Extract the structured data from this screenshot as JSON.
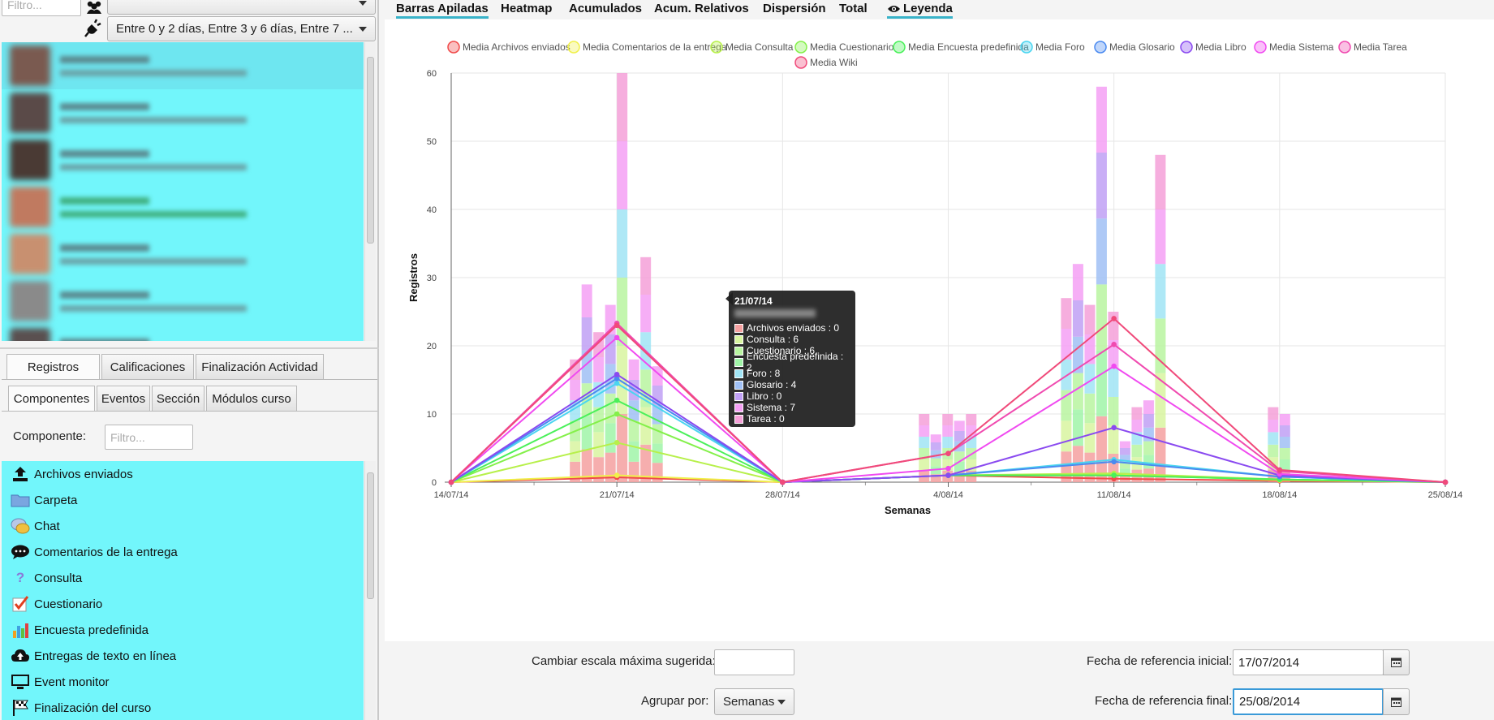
{
  "left": {
    "filter_placeholder": "Filtro...",
    "time_filter_value": "Entre 0 y 2 días, Entre 3 y 6 días, Entre 7 ...",
    "tabs": [
      {
        "label": "Registros",
        "selected": true
      },
      {
        "label": "Calificaciones",
        "selected": false
      },
      {
        "label": "Finalización Actividad",
        "selected": false
      }
    ],
    "subtabs": [
      {
        "label": "Componentes",
        "selected": true
      },
      {
        "label": "Eventos",
        "selected": false
      },
      {
        "label": "Sección",
        "selected": false
      },
      {
        "label": "Módulos curso",
        "selected": false
      }
    ],
    "component_label": "Componente:",
    "component_placeholder": "Filtro...",
    "components": [
      {
        "label": "Archivos enviados",
        "icon": "upload-icon"
      },
      {
        "label": "Carpeta",
        "icon": "folder-icon"
      },
      {
        "label": "Chat",
        "icon": "chat-icon"
      },
      {
        "label": "Comentarios de la entrega",
        "icon": "comment-icon"
      },
      {
        "label": "Consulta",
        "icon": "question-icon"
      },
      {
        "label": "Cuestionario",
        "icon": "quiz-icon"
      },
      {
        "label": "Encuesta predefinida",
        "icon": "bar-chart-icon"
      },
      {
        "label": "Entregas de texto en línea",
        "icon": "cloud-upload-icon"
      },
      {
        "label": "Event monitor",
        "icon": "monitor-icon"
      },
      {
        "label": "Finalización del curso",
        "icon": "flag-icon"
      }
    ]
  },
  "tabs": [
    {
      "label": "Barras Apiladas",
      "selected": true
    },
    {
      "label": "Heatmap"
    },
    {
      "label": "Acumulados"
    },
    {
      "label": "Acum. Relativos"
    },
    {
      "label": "Dispersión"
    },
    {
      "label": "Total"
    },
    {
      "label": "Leyenda",
      "icon": "eye-icon",
      "selected": true
    }
  ],
  "chart_data": {
    "type": "bar",
    "subtype": "stacked bar with mean lines",
    "xlabel": "Semanas",
    "ylabel": "Registros",
    "ylim": [
      0,
      60
    ],
    "yticks": [
      0,
      10,
      20,
      30,
      40,
      50,
      60
    ],
    "x_categories": [
      "14/07/14",
      "21/07/14",
      "28/07/14",
      "4/08/14",
      "11/08/14",
      "18/08/14",
      "25/08/14"
    ],
    "legend_position": "top",
    "grid": true,
    "legend": [
      {
        "name": "Media Archivos enviados",
        "color": "#f04a4a"
      },
      {
        "name": "Media Comentarios de la entrega",
        "color": "#f0f04a"
      },
      {
        "name": "Media Consulta",
        "color": "#b7f04a"
      },
      {
        "name": "Media Cuestionario",
        "color": "#84f04a"
      },
      {
        "name": "Media Encuesta predefinida",
        "color": "#4af05a"
      },
      {
        "name": "Media Foro",
        "color": "#4ad5f0"
      },
      {
        "name": "Media Glosario",
        "color": "#4a8af0"
      },
      {
        "name": "Media Libro",
        "color": "#8a4af0"
      },
      {
        "name": "Media Sistema",
        "color": "#f04af0"
      },
      {
        "name": "Media Tarea",
        "color": "#f04ab0"
      },
      {
        "name": "Media Wiki",
        "color": "#f04a7a"
      }
    ],
    "mean_series": [
      {
        "name": "Media Archivos enviados",
        "values": [
          0,
          0.7,
          0,
          1.0,
          0.5,
          0.2,
          0
        ]
      },
      {
        "name": "Media Comentarios de la entrega",
        "values": [
          0,
          1.0,
          0,
          1.0,
          1.1,
          0.3,
          0
        ]
      },
      {
        "name": "Media Consulta",
        "values": [
          0,
          5.8,
          0,
          1.0,
          1.3,
          0.4,
          0
        ]
      },
      {
        "name": "Media Cuestionario",
        "values": [
          0,
          10.0,
          0,
          1.0,
          1.0,
          0.4,
          0
        ]
      },
      {
        "name": "Media Encuesta predefinida",
        "values": [
          0,
          12.0,
          0,
          1.0,
          1.0,
          0.4,
          0
        ]
      },
      {
        "name": "Media Foro",
        "values": [
          0,
          14.5,
          0,
          1.0,
          3.3,
          0.8,
          0
        ]
      },
      {
        "name": "Media Glosario",
        "values": [
          0,
          15.2,
          0,
          1.0,
          3.0,
          0.8,
          0
        ]
      },
      {
        "name": "Media Libro",
        "values": [
          0,
          15.8,
          0,
          1.0,
          8.0,
          1.0,
          0
        ]
      },
      {
        "name": "Media Sistema",
        "values": [
          0,
          21.2,
          0,
          2.0,
          17.0,
          1.2,
          0
        ]
      },
      {
        "name": "Media Tarea",
        "values": [
          0,
          23.3,
          0,
          4.2,
          20.2,
          1.6,
          0
        ]
      },
      {
        "name": "Media Wiki",
        "values": [
          0,
          23.0,
          0,
          4.2,
          24.0,
          1.8,
          0
        ]
      }
    ],
    "bar_totals": {
      "21/07/14": [
        18,
        29,
        22,
        26,
        60,
        18,
        33,
        17
      ],
      "4/08/14": [
        10,
        7,
        10,
        9,
        10
      ],
      "11/08/14": [
        27,
        32,
        26,
        58,
        25,
        6,
        11,
        12,
        48
      ],
      "18/08/14": [
        11,
        10
      ]
    },
    "tooltip": {
      "title": "21/07/14",
      "rows": [
        {
          "label": "Archivos enviados : 0",
          "color": "#f5a0a0"
        },
        {
          "label": "Consulta : 6",
          "color": "#d8f5a0"
        },
        {
          "label": "Cuestionario : 6",
          "color": "#b8f5a0"
        },
        {
          "label": "Encuesta predefinida : 2",
          "color": "#a0f5a8"
        },
        {
          "label": "Foro : 8",
          "color": "#a0e4f5"
        },
        {
          "label": "Glosario : 4",
          "color": "#a0c0f5"
        },
        {
          "label": "Libro : 0",
          "color": "#c0a0f5"
        },
        {
          "label": "Sistema : 7",
          "color": "#f5a0f5"
        },
        {
          "label": "Tarea : 0",
          "color": "#f5a0d8"
        }
      ]
    }
  },
  "bottom": {
    "scale_label": "Cambiar escala máxima sugerida:",
    "scale_value": "",
    "group_label": "Agrupar por:",
    "group_value": "Semanas",
    "start_label": "Fecha de referencia inicial:",
    "start_value": "17/07/2014",
    "end_label": "Fecha de referencia final:",
    "end_value": "25/08/2014"
  }
}
